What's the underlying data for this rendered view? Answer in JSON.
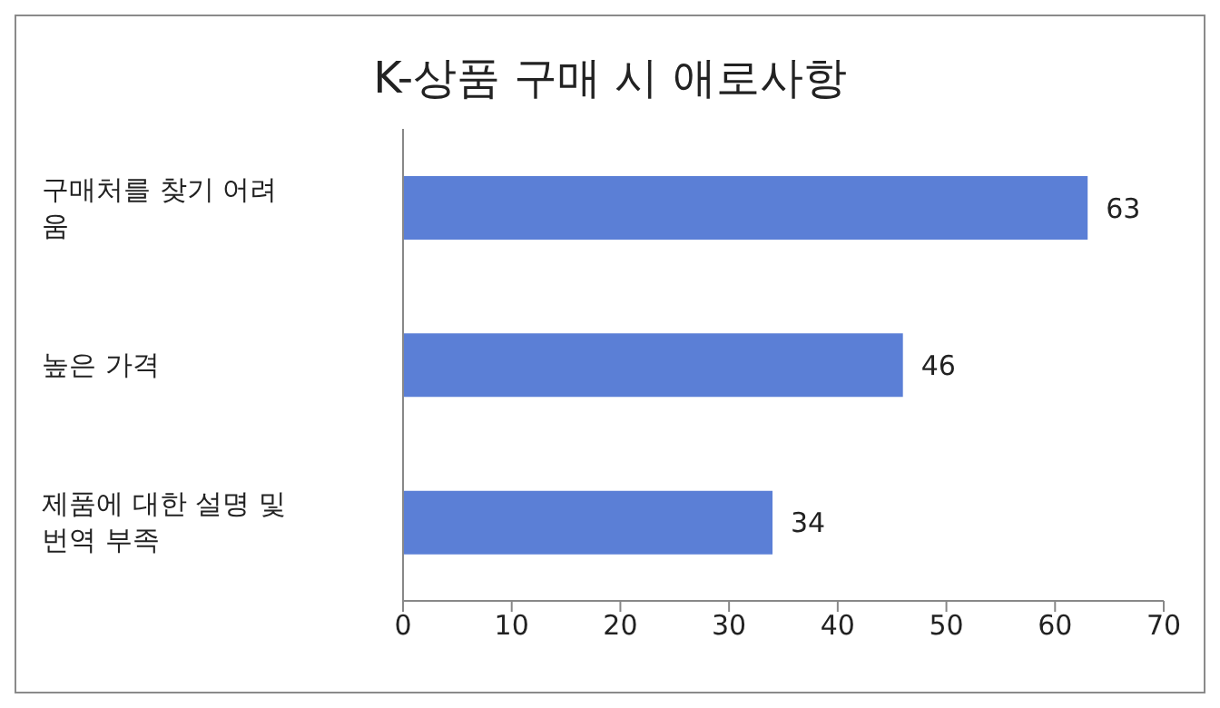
{
  "chart_data": {
    "type": "bar",
    "orientation": "horizontal",
    "title": "K-상품 구매 시 애로사항",
    "categories": [
      "구매처를 찾기 어려움",
      "높은 가격",
      "제품에 대한 설명 및 번역 부족"
    ],
    "values": [
      63,
      46,
      34
    ],
    "color": "#5b7fd6",
    "xlim": [
      0,
      70
    ],
    "xticks": [
      0,
      10,
      20,
      30,
      40,
      50,
      60,
      70
    ],
    "grid": false,
    "data_labels": true
  }
}
